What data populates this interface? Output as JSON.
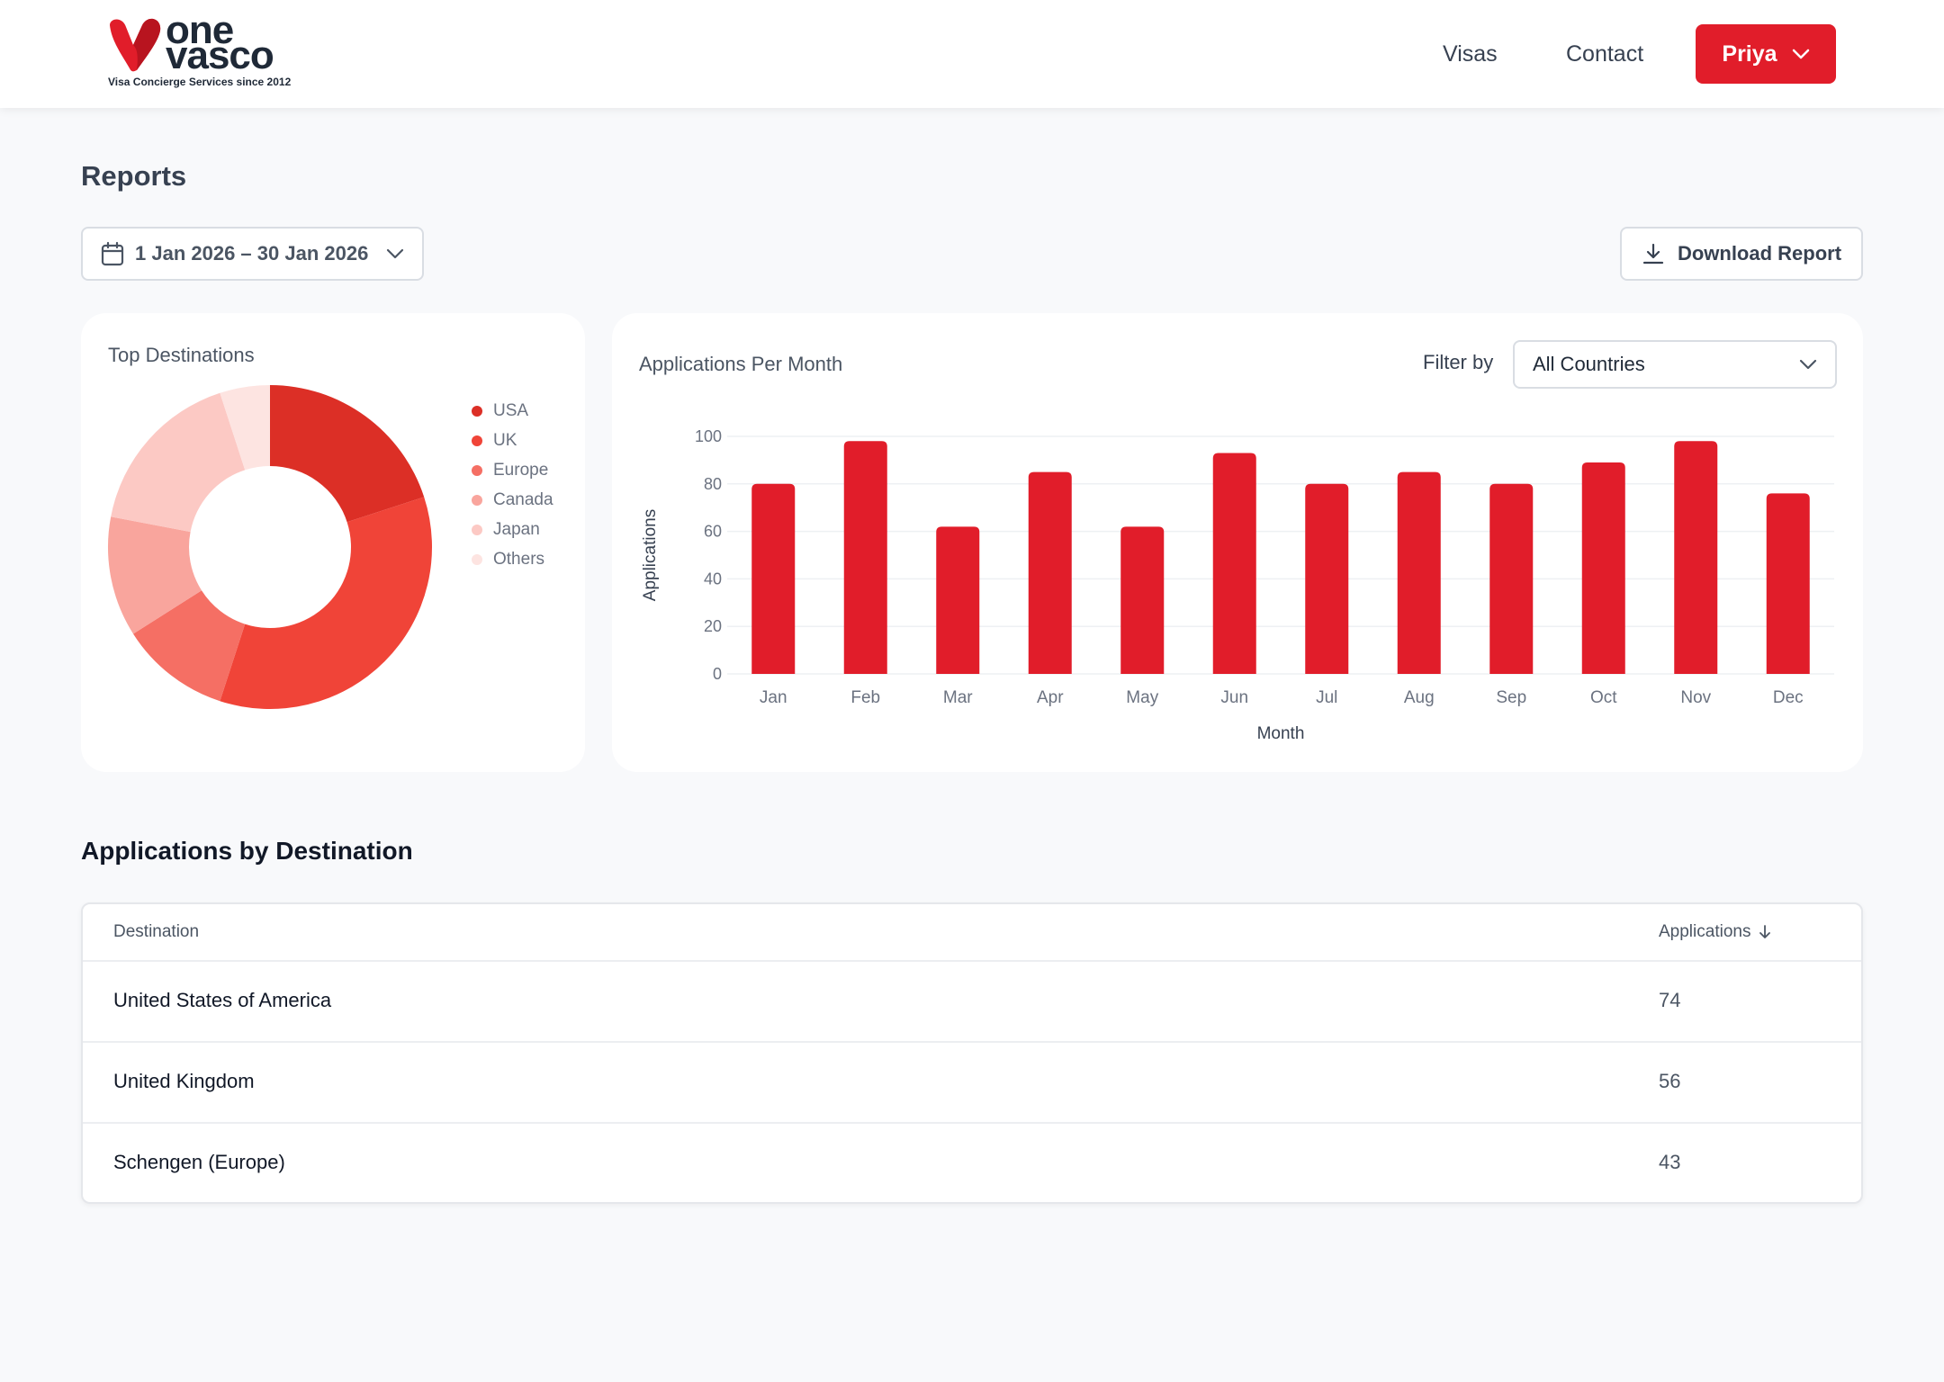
{
  "header": {
    "logo": {
      "word1": "one",
      "word2": "vasco",
      "tagline": "Visa Concierge Services since 2012"
    },
    "nav": [
      {
        "label": "Visas"
      },
      {
        "label": "Contact"
      }
    ],
    "user": {
      "name": "Priya"
    }
  },
  "page": {
    "title": "Reports",
    "date_range": "1 Jan 2026 – 30 Jan 2026",
    "download_label": "Download Report"
  },
  "donut_card": {
    "title": "Top Destinations"
  },
  "bar_card": {
    "title": "Applications Per Month",
    "filter_label": "Filter by",
    "filter_value": "All Countries"
  },
  "chart_data": [
    {
      "type": "pie",
      "donut": true,
      "title": "Top Destinations",
      "labels": [
        "USA",
        "UK",
        "Europe",
        "Canada",
        "Japan",
        "Others"
      ],
      "values": [
        20,
        35,
        11,
        12,
        17,
        5
      ],
      "colors": [
        "#dc2f26",
        "#f04438",
        "#f56f64",
        "#f9a59d",
        "#fcc9c4",
        "#fde4e1"
      ],
      "legend": "right"
    },
    {
      "type": "bar",
      "title": "Applications Per Month",
      "categories": [
        "Jan",
        "Feb",
        "Mar",
        "Apr",
        "May",
        "Jun",
        "Jul",
        "Aug",
        "Sep",
        "Oct",
        "Nov",
        "Dec"
      ],
      "values": [
        80,
        98,
        62,
        85,
        62,
        93,
        80,
        85,
        80,
        89,
        98,
        76
      ],
      "xlabel": "Month",
      "ylabel": "Applications",
      "ylim": [
        0,
        100
      ],
      "yticks": [
        0,
        20,
        40,
        60,
        80,
        100
      ],
      "color": "#e11d2a",
      "grid": true
    }
  ],
  "table": {
    "title": "Applications by Destination",
    "headers": {
      "destination": "Destination",
      "applications": "Applications"
    },
    "rows": [
      {
        "destination": "United States of America",
        "applications": "74"
      },
      {
        "destination": "United Kingdom",
        "applications": "56"
      },
      {
        "destination": "Schengen (Europe)",
        "applications": "43"
      }
    ]
  },
  "colors": {
    "brand": "#e11d2a",
    "background": "#f8f9fb"
  },
  "icons": {
    "calendar": "calendar-icon",
    "download": "download-icon",
    "chevron": "chevron-down-icon",
    "sort": "arrow-down-icon"
  }
}
